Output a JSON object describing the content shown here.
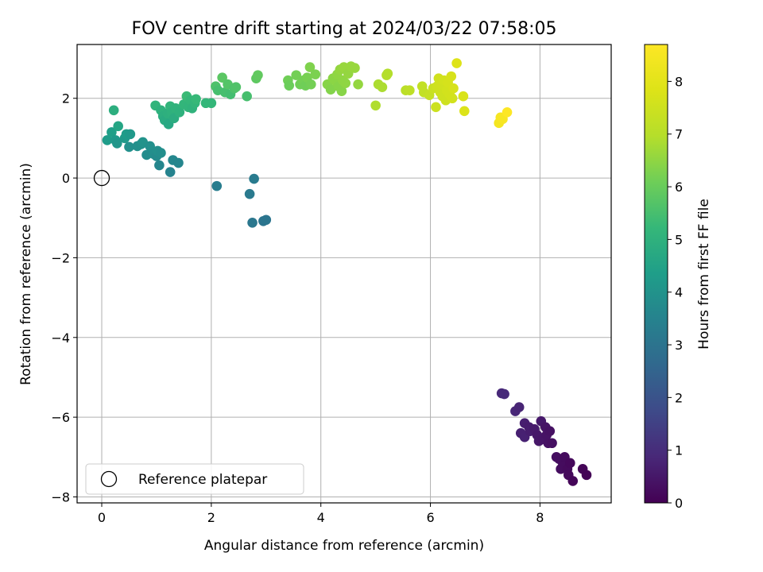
{
  "chart_data": {
    "type": "scatter",
    "title": "FOV centre drift starting at 2024/03/22 07:58:05",
    "xlabel": "Angular distance from reference (arcmin)",
    "ylabel": "Rotation from reference (arcmin)",
    "xlim": [
      -0.45,
      9.3
    ],
    "ylim": [
      -8.15,
      3.35
    ],
    "xticks": [
      0,
      2,
      4,
      6,
      8
    ],
    "xtick_labels": [
      "0",
      "2",
      "4",
      "6",
      "8"
    ],
    "yticks": [
      -8,
      -6,
      -4,
      -2,
      0,
      2
    ],
    "ytick_labels": [
      "−8",
      "−6",
      "−4",
      "−2",
      "0",
      "2"
    ],
    "grid": true,
    "legend": {
      "placement": "lower-left",
      "entries": [
        "Reference platepar"
      ]
    },
    "reference_point": {
      "name": "Reference platepar",
      "x": 0,
      "y": 0
    },
    "colorbar": {
      "label": "Hours from first FF file",
      "range": [
        0,
        8.7
      ],
      "ticks": [
        0,
        1,
        2,
        3,
        4,
        5,
        6,
        7,
        8
      ],
      "tick_labels": [
        "0",
        "1",
        "2",
        "3",
        "4",
        "5",
        "6",
        "7",
        "8"
      ],
      "colormap": "viridis"
    },
    "points": [
      {
        "x": 7.3,
        "y": -5.4,
        "c": 0.9
      },
      {
        "x": 7.35,
        "y": -5.42,
        "c": 0.92
      },
      {
        "x": 7.55,
        "y": -5.85,
        "c": 0.85
      },
      {
        "x": 7.62,
        "y": -5.75,
        "c": 0.8
      },
      {
        "x": 7.65,
        "y": -6.4,
        "c": 0.7
      },
      {
        "x": 7.72,
        "y": -6.5,
        "c": 0.72
      },
      {
        "x": 7.72,
        "y": -6.15,
        "c": 0.65
      },
      {
        "x": 7.8,
        "y": -6.25,
        "c": 0.6
      },
      {
        "x": 7.82,
        "y": -6.35,
        "c": 0.62
      },
      {
        "x": 7.9,
        "y": -6.3,
        "c": 0.55
      },
      {
        "x": 7.95,
        "y": -6.45,
        "c": 0.5
      },
      {
        "x": 7.98,
        "y": -6.6,
        "c": 0.48
      },
      {
        "x": 8.02,
        "y": -6.1,
        "c": 0.52
      },
      {
        "x": 8.05,
        "y": -6.55,
        "c": 0.45
      },
      {
        "x": 8.1,
        "y": -6.25,
        "c": 0.42
      },
      {
        "x": 8.12,
        "y": -6.45,
        "c": 0.4
      },
      {
        "x": 8.15,
        "y": -6.65,
        "c": 0.38
      },
      {
        "x": 8.18,
        "y": -6.35,
        "c": 0.36
      },
      {
        "x": 8.22,
        "y": -6.65,
        "c": 0.34
      },
      {
        "x": 8.3,
        "y": -7.0,
        "c": 0.3
      },
      {
        "x": 8.35,
        "y": -7.05,
        "c": 0.28
      },
      {
        "x": 8.38,
        "y": -7.3,
        "c": 0.26
      },
      {
        "x": 8.42,
        "y": -7.2,
        "c": 0.24
      },
      {
        "x": 8.45,
        "y": -7.0,
        "c": 0.22
      },
      {
        "x": 8.5,
        "y": -7.3,
        "c": 0.2
      },
      {
        "x": 8.52,
        "y": -7.45,
        "c": 0.18
      },
      {
        "x": 8.55,
        "y": -7.15,
        "c": 0.16
      },
      {
        "x": 8.6,
        "y": -7.6,
        "c": 0.12
      },
      {
        "x": 8.78,
        "y": -7.3,
        "c": 0.08
      },
      {
        "x": 8.85,
        "y": -7.45,
        "c": 0.05
      },
      {
        "x": 2.1,
        "y": -0.2,
        "c": 3.3
      },
      {
        "x": 2.7,
        "y": -0.4,
        "c": 3.2
      },
      {
        "x": 2.75,
        "y": -1.12,
        "c": 3.1
      },
      {
        "x": 2.78,
        "y": -0.02,
        "c": 3.25
      },
      {
        "x": 2.95,
        "y": -1.08,
        "c": 3.0
      },
      {
        "x": 3.0,
        "y": -1.05,
        "c": 3.05
      },
      {
        "x": 0.1,
        "y": 0.95,
        "c": 4.3
      },
      {
        "x": 0.18,
        "y": 1.15,
        "c": 4.4
      },
      {
        "x": 0.22,
        "y": 1.7,
        "c": 4.9
      },
      {
        "x": 0.25,
        "y": 0.95,
        "c": 4.2
      },
      {
        "x": 0.28,
        "y": 0.87,
        "c": 4.1
      },
      {
        "x": 0.3,
        "y": 1.3,
        "c": 4.6
      },
      {
        "x": 0.42,
        "y": 1.0,
        "c": 4.2
      },
      {
        "x": 0.45,
        "y": 1.1,
        "c": 4.3
      },
      {
        "x": 0.5,
        "y": 0.78,
        "c": 3.9
      },
      {
        "x": 0.52,
        "y": 1.1,
        "c": 4.2
      },
      {
        "x": 0.65,
        "y": 0.8,
        "c": 3.9
      },
      {
        "x": 0.72,
        "y": 0.85,
        "c": 3.95
      },
      {
        "x": 0.75,
        "y": 0.9,
        "c": 4.0
      },
      {
        "x": 0.82,
        "y": 0.58,
        "c": 3.8
      },
      {
        "x": 0.88,
        "y": 0.8,
        "c": 3.9
      },
      {
        "x": 0.95,
        "y": 0.6,
        "c": 3.85
      },
      {
        "x": 1.0,
        "y": 0.55,
        "c": 3.75
      },
      {
        "x": 1.02,
        "y": 0.68,
        "c": 3.9
      },
      {
        "x": 1.05,
        "y": 0.32,
        "c": 3.6
      },
      {
        "x": 1.08,
        "y": 0.63,
        "c": 3.85
      },
      {
        "x": 1.25,
        "y": 0.15,
        "c": 3.5
      },
      {
        "x": 1.3,
        "y": 0.45,
        "c": 3.65
      },
      {
        "x": 1.4,
        "y": 0.38,
        "c": 3.6
      },
      {
        "x": 0.98,
        "y": 1.82,
        "c": 5.1
      },
      {
        "x": 1.08,
        "y": 1.7,
        "c": 5.0
      },
      {
        "x": 1.12,
        "y": 1.55,
        "c": 4.9
      },
      {
        "x": 1.15,
        "y": 1.45,
        "c": 4.8
      },
      {
        "x": 1.2,
        "y": 1.62,
        "c": 4.95
      },
      {
        "x": 1.22,
        "y": 1.35,
        "c": 4.7
      },
      {
        "x": 1.25,
        "y": 1.8,
        "c": 5.1
      },
      {
        "x": 1.28,
        "y": 1.65,
        "c": 5.0
      },
      {
        "x": 1.32,
        "y": 1.5,
        "c": 4.85
      },
      {
        "x": 1.35,
        "y": 1.75,
        "c": 5.05
      },
      {
        "x": 1.42,
        "y": 1.65,
        "c": 5.0
      },
      {
        "x": 1.5,
        "y": 1.85,
        "c": 5.15
      },
      {
        "x": 1.55,
        "y": 2.05,
        "c": 5.3
      },
      {
        "x": 1.58,
        "y": 1.78,
        "c": 5.1
      },
      {
        "x": 1.62,
        "y": 1.95,
        "c": 5.2
      },
      {
        "x": 1.65,
        "y": 1.75,
        "c": 5.05
      },
      {
        "x": 1.7,
        "y": 1.88,
        "c": 5.15
      },
      {
        "x": 1.72,
        "y": 1.98,
        "c": 5.25
      },
      {
        "x": 1.9,
        "y": 1.88,
        "c": 5.2
      },
      {
        "x": 2.0,
        "y": 1.88,
        "c": 5.2
      },
      {
        "x": 2.08,
        "y": 2.3,
        "c": 5.6
      },
      {
        "x": 2.12,
        "y": 2.2,
        "c": 5.5
      },
      {
        "x": 2.2,
        "y": 2.52,
        "c": 5.8
      },
      {
        "x": 2.25,
        "y": 2.15,
        "c": 5.5
      },
      {
        "x": 2.3,
        "y": 2.35,
        "c": 5.7
      },
      {
        "x": 2.35,
        "y": 2.1,
        "c": 5.45
      },
      {
        "x": 2.42,
        "y": 2.25,
        "c": 5.6
      },
      {
        "x": 2.45,
        "y": 2.28,
        "c": 5.65
      },
      {
        "x": 2.65,
        "y": 2.05,
        "c": 5.5
      },
      {
        "x": 2.82,
        "y": 2.5,
        "c": 5.85
      },
      {
        "x": 2.85,
        "y": 2.58,
        "c": 5.9
      },
      {
        "x": 3.4,
        "y": 2.45,
        "c": 6.1
      },
      {
        "x": 3.42,
        "y": 2.32,
        "c": 6.05
      },
      {
        "x": 3.55,
        "y": 2.58,
        "c": 6.15
      },
      {
        "x": 3.62,
        "y": 2.35,
        "c": 6.1
      },
      {
        "x": 3.68,
        "y": 2.45,
        "c": 6.15
      },
      {
        "x": 3.72,
        "y": 2.32,
        "c": 6.1
      },
      {
        "x": 3.75,
        "y": 2.52,
        "c": 6.2
      },
      {
        "x": 3.8,
        "y": 2.78,
        "c": 6.3
      },
      {
        "x": 3.82,
        "y": 2.35,
        "c": 6.15
      },
      {
        "x": 3.9,
        "y": 2.6,
        "c": 6.25
      },
      {
        "x": 4.12,
        "y": 2.35,
        "c": 6.4
      },
      {
        "x": 4.18,
        "y": 2.22,
        "c": 6.35
      },
      {
        "x": 4.22,
        "y": 2.5,
        "c": 6.45
      },
      {
        "x": 4.28,
        "y": 2.42,
        "c": 6.45
      },
      {
        "x": 4.3,
        "y": 2.6,
        "c": 6.5
      },
      {
        "x": 4.32,
        "y": 2.3,
        "c": 6.4
      },
      {
        "x": 4.35,
        "y": 2.72,
        "c": 6.55
      },
      {
        "x": 4.38,
        "y": 2.18,
        "c": 6.4
      },
      {
        "x": 4.4,
        "y": 2.45,
        "c": 6.5
      },
      {
        "x": 4.42,
        "y": 2.78,
        "c": 6.6
      },
      {
        "x": 4.45,
        "y": 2.38,
        "c": 6.5
      },
      {
        "x": 4.5,
        "y": 2.62,
        "c": 6.55
      },
      {
        "x": 4.55,
        "y": 2.8,
        "c": 6.6
      },
      {
        "x": 4.62,
        "y": 2.76,
        "c": 6.6
      },
      {
        "x": 4.68,
        "y": 2.35,
        "c": 6.55
      },
      {
        "x": 5.0,
        "y": 1.82,
        "c": 6.9
      },
      {
        "x": 5.05,
        "y": 2.35,
        "c": 6.85
      },
      {
        "x": 5.12,
        "y": 2.28,
        "c": 6.85
      },
      {
        "x": 5.2,
        "y": 2.58,
        "c": 6.95
      },
      {
        "x": 5.22,
        "y": 2.62,
        "c": 6.95
      },
      {
        "x": 5.55,
        "y": 2.2,
        "c": 7.1
      },
      {
        "x": 5.62,
        "y": 2.2,
        "c": 7.15
      },
      {
        "x": 5.85,
        "y": 2.3,
        "c": 7.25
      },
      {
        "x": 5.88,
        "y": 2.15,
        "c": 7.25
      },
      {
        "x": 5.98,
        "y": 2.08,
        "c": 7.3
      },
      {
        "x": 6.05,
        "y": 2.25,
        "c": 7.4
      },
      {
        "x": 6.1,
        "y": 1.78,
        "c": 7.45
      },
      {
        "x": 6.12,
        "y": 2.3,
        "c": 7.5
      },
      {
        "x": 6.15,
        "y": 2.5,
        "c": 7.55
      },
      {
        "x": 6.18,
        "y": 2.15,
        "c": 7.5
      },
      {
        "x": 6.2,
        "y": 2.35,
        "c": 7.55
      },
      {
        "x": 6.22,
        "y": 2.05,
        "c": 7.5
      },
      {
        "x": 6.25,
        "y": 2.45,
        "c": 7.6
      },
      {
        "x": 6.28,
        "y": 1.95,
        "c": 7.5
      },
      {
        "x": 6.3,
        "y": 2.2,
        "c": 7.6
      },
      {
        "x": 6.32,
        "y": 2.4,
        "c": 7.65
      },
      {
        "x": 6.35,
        "y": 2.1,
        "c": 7.6
      },
      {
        "x": 6.38,
        "y": 2.55,
        "c": 7.7
      },
      {
        "x": 6.4,
        "y": 2.0,
        "c": 7.6
      },
      {
        "x": 6.42,
        "y": 2.25,
        "c": 7.7
      },
      {
        "x": 6.48,
        "y": 2.88,
        "c": 7.85
      },
      {
        "x": 6.6,
        "y": 2.05,
        "c": 7.75
      },
      {
        "x": 6.62,
        "y": 1.68,
        "c": 7.8
      },
      {
        "x": 7.25,
        "y": 1.38,
        "c": 8.45
      },
      {
        "x": 7.28,
        "y": 1.52,
        "c": 8.5
      },
      {
        "x": 7.32,
        "y": 1.48,
        "c": 8.55
      },
      {
        "x": 7.4,
        "y": 1.65,
        "c": 8.7
      }
    ]
  }
}
